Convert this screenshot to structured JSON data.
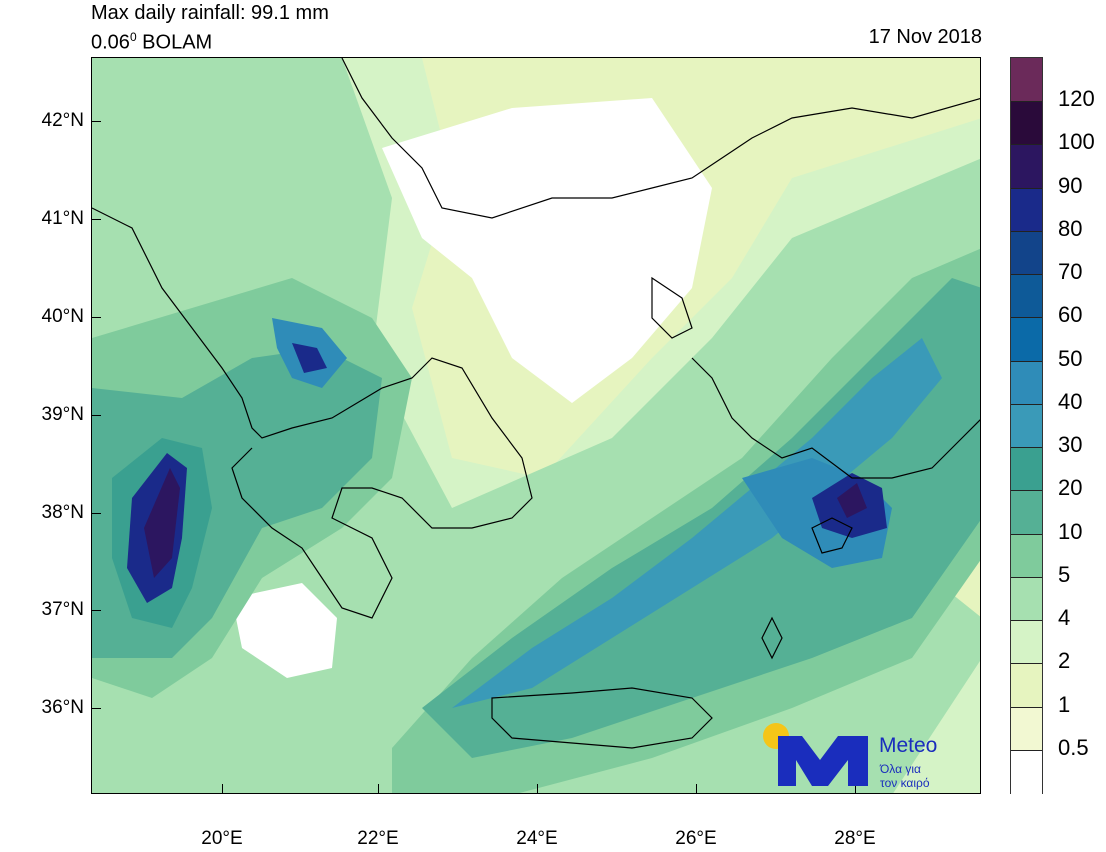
{
  "header": {
    "line1": "Max daily rainfall: 99.1 mm",
    "line2_prefix": "0.06",
    "line2_sup": "0",
    "line2_suffix": " BOLAM",
    "date": "17 Nov 2018"
  },
  "axes": {
    "lat_labels": [
      "42°N",
      "41°N",
      "40°N",
      "39°N",
      "38°N",
      "37°N",
      "36°N"
    ],
    "lon_labels": [
      "20°E",
      "22°E",
      "24°E",
      "26°E",
      "28°E"
    ]
  },
  "legend": {
    "labels": [
      "120",
      "100",
      "90",
      "80",
      "70",
      "60",
      "50",
      "40",
      "30",
      "20",
      "10",
      "5",
      "4",
      "2",
      "1",
      "0.5"
    ],
    "colors": [
      "#6b2a5a",
      "#2a0a3a",
      "#2c1660",
      "#1a2a8a",
      "#12448a",
      "#0e5a98",
      "#0b6aa8",
      "#2f8cb8",
      "#3a9ab8",
      "#3aa090",
      "#55b095",
      "#7fcb9c",
      "#a6e0b0",
      "#d5f3c6",
      "#e6f4bf",
      "#f2f8d2",
      "#ffffff"
    ]
  },
  "logo": {
    "brand": "Meteo",
    "tagline1": "Όλα για",
    "tagline2": "τον καιρό",
    "yellow": "#f5c518",
    "blue": "#1a2dbd"
  },
  "colors": {
    "land_dry": "#ffffff",
    "coast": "#000000"
  }
}
